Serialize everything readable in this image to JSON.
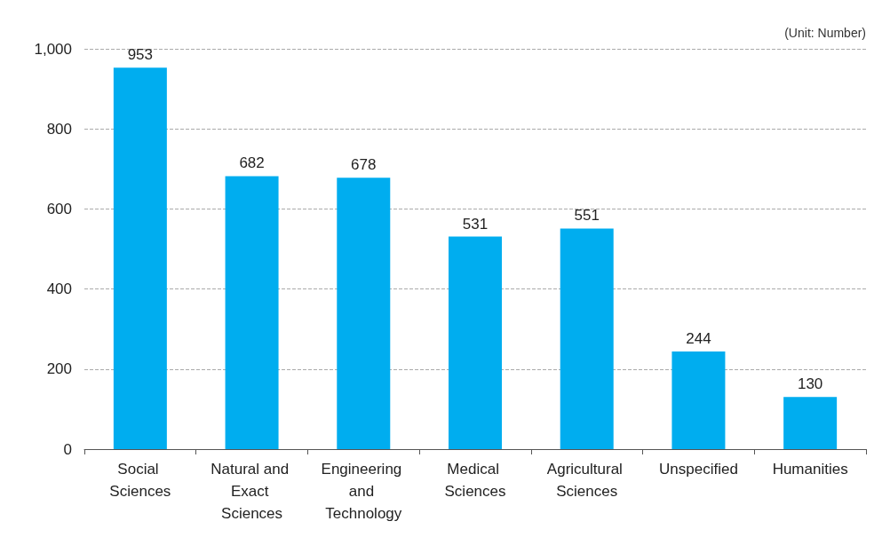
{
  "chart_data": {
    "type": "bar",
    "categories": [
      "Social Sciences",
      "Natural and Exact Sciences",
      "Engineering and Technology",
      "Medical Sciences",
      "Agricultural Sciences",
      "Unspecified",
      "Humanities"
    ],
    "values": [
      953,
      682,
      678,
      531,
      551,
      244,
      130
    ],
    "color": "#00adef",
    "ylim": [
      0,
      1000
    ],
    "yticks": [
      0,
      200,
      400,
      600,
      800,
      {
        "value": 1000,
        "label": "1,000"
      }
    ],
    "grid": "y",
    "data_labels": true,
    "annotations": [
      "(Unit: Number)"
    ]
  }
}
